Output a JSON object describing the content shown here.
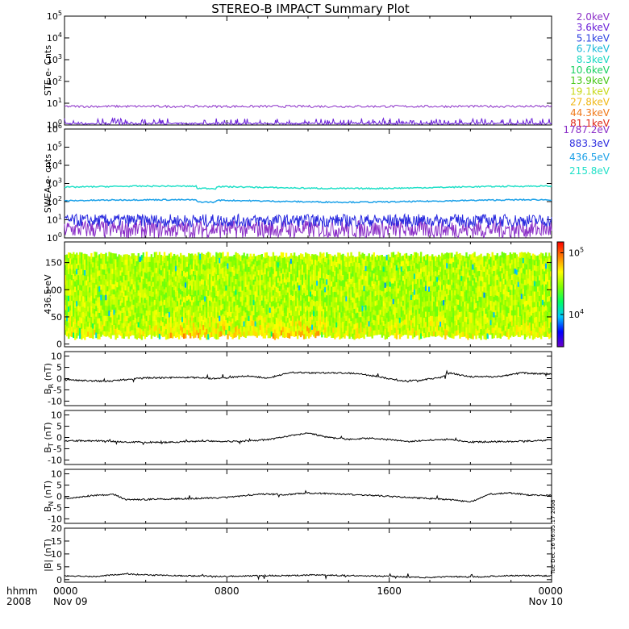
{
  "title": "STEREO-B IMPACT Summary Plot",
  "x_axis": {
    "left_caption": [
      "hhmm",
      "2008"
    ],
    "ticks": [
      {
        "hour": 0,
        "lines": [
          "0000",
          "Nov 09"
        ]
      },
      {
        "hour": 8,
        "lines": [
          "0800",
          ""
        ]
      },
      {
        "hour": 16,
        "lines": [
          "1600",
          ""
        ]
      },
      {
        "hour": 24,
        "lines": [
          "0000",
          "Nov 10"
        ]
      }
    ],
    "range_hours": [
      0,
      24
    ]
  },
  "timestamp": "Tue Dec 16 06:05:17 2008",
  "colors": {
    "ste": [
      "#8b2fc8",
      "#6a1fd8",
      "#2a3fe0",
      "#16b8d8",
      "#18d8c0",
      "#18d060",
      "#48c818",
      "#c8d818",
      "#f0b818",
      "#f07818",
      "#e02818"
    ],
    "swea": [
      "#8b2fc8",
      "#2a2adf",
      "#1aa0e8",
      "#22e0c8"
    ],
    "colorbar": [
      "#6a00c8",
      "#0000ff",
      "#00c8ff",
      "#00ff60",
      "#80ff00",
      "#ffff00",
      "#ff8000",
      "#ff0000"
    ]
  },
  "chart_data": [
    {
      "type": "line",
      "name": "STE",
      "ylabel": "STE e- Cnts",
      "yscale": "log",
      "ylim": [
        1,
        100000
      ],
      "ytick_labels": [
        "10^0",
        "10^1",
        "10^2",
        "10^3",
        "10^4",
        "10^5"
      ],
      "legend": [
        "2.0keV",
        "3.6keV",
        "5.1keV",
        "6.7keV",
        "8.3keV",
        "10.6keV",
        "13.9keV",
        "19.1keV",
        "27.8keV",
        "44.3keV",
        "81.1keV"
      ],
      "series": [
        {
          "label": "2.0keV",
          "approx_level": 7,
          "noise": "low"
        },
        {
          "label": "3.6keV",
          "approx_level": 1.3,
          "noise": "spiky"
        }
      ]
    },
    {
      "type": "line",
      "name": "SWEA",
      "ylabel": "SWEA e- cnts",
      "yscale": "log",
      "ylim": [
        1,
        1000000
      ],
      "ytick_labels": [
        "10^0",
        "10^1",
        "10^2",
        "10^3",
        "10^4",
        "10^5",
        "10^6"
      ],
      "legend": [
        "1787.2eV",
        "883.3eV",
        "436.5eV",
        "215.8eV"
      ],
      "series": [
        {
          "label": "1787.2eV",
          "approx_level": 3,
          "noise": "spiky"
        },
        {
          "label": "883.3eV",
          "approx_level": 9,
          "noise": "spiky"
        },
        {
          "label": "436.5eV",
          "approx_level": 110,
          "noise": "low"
        },
        {
          "label": "215.8eV",
          "approx_level": 620,
          "noise": "low"
        }
      ]
    },
    {
      "type": "heatmap",
      "name": "Pitch angle",
      "ylabel": "436.5 eV",
      "ylim": [
        0,
        180
      ],
      "yticks": [
        0,
        50,
        100,
        150
      ],
      "colorbar": {
        "scale": "log",
        "range": [
          3000,
          150000
        ],
        "tick_labels": [
          "10^4",
          "10^5"
        ]
      },
      "description_values": {
        "background_level": 35000,
        "low_angle_level": 70000
      }
    },
    {
      "type": "line",
      "name": "BR",
      "ylabel": "B_R (nT)",
      "ylim": [
        -12,
        12
      ],
      "yticks": [
        -10,
        -5,
        0,
        5,
        10
      ],
      "x": [
        0,
        2,
        4,
        6,
        7.5,
        9,
        10,
        11.2,
        12,
        13.5,
        14.5,
        15.5,
        16.5,
        17.5,
        18.5,
        19,
        20,
        21.5,
        22.5,
        24
      ],
      "y": [
        -0.5,
        -1.2,
        0.3,
        0.5,
        0,
        1.2,
        0.2,
        2.8,
        2.5,
        2.6,
        2.2,
        0.8,
        -1.0,
        -0.8,
        0.5,
        2.5,
        0.8,
        1.0,
        2.5,
        2.0
      ]
    },
    {
      "type": "line",
      "name": "BT",
      "ylabel": "B_T (nT)",
      "ylim": [
        -12,
        12
      ],
      "yticks": [
        -10,
        -5,
        0,
        5,
        10
      ],
      "x": [
        0,
        2,
        3,
        5,
        7,
        8.5,
        10,
        11,
        12,
        13,
        14,
        15,
        16,
        17,
        18,
        19,
        20,
        22,
        24
      ],
      "y": [
        -1.5,
        -1.5,
        -2,
        -2.2,
        -1.5,
        -1.8,
        -1.0,
        0.5,
        2.0,
        0,
        -0.8,
        -0.3,
        -1.0,
        -1.8,
        -1.2,
        -0.8,
        -2.0,
        -1.8,
        -1.2
      ]
    },
    {
      "type": "line",
      "name": "BN",
      "ylabel": "B_N (nT)",
      "ylim": [
        -12,
        12
      ],
      "yticks": [
        -10,
        -5,
        0,
        5,
        10
      ],
      "x": [
        0,
        1.5,
        2.5,
        3,
        5,
        7,
        8,
        9,
        10,
        11,
        12,
        13,
        14,
        15,
        16,
        17,
        18,
        19,
        20,
        21,
        22,
        23,
        24
      ],
      "y": [
        -1.0,
        0.5,
        0.8,
        -1.5,
        -1.2,
        -0.8,
        -0.5,
        0.5,
        1.0,
        0.8,
        1.5,
        1.2,
        0.8,
        0.5,
        0,
        -0.5,
        -1.0,
        -1.5,
        -2.5,
        1.0,
        1.5,
        0.5,
        0.5
      ]
    },
    {
      "type": "line",
      "name": "Bmag",
      "ylabel": "|B| (nT)",
      "ylim": [
        -1,
        20
      ],
      "yticks": [
        0,
        5,
        10,
        15,
        20
      ],
      "x": [
        0,
        1.5,
        3,
        4,
        6,
        8,
        10,
        11,
        12,
        14,
        16,
        17,
        18,
        19,
        20,
        22,
        24
      ],
      "y": [
        1.5,
        1.2,
        2.3,
        1.8,
        1.5,
        1.3,
        1.6,
        1.5,
        1.8,
        1.6,
        1.3,
        1.0,
        0.8,
        1.2,
        1.0,
        1.6,
        1.5
      ]
    }
  ]
}
